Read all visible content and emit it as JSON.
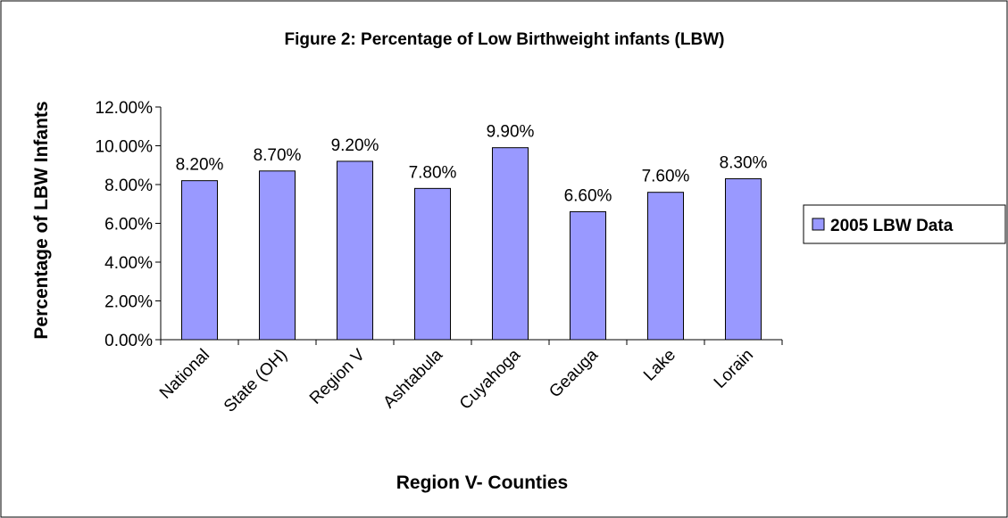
{
  "chart_data": {
    "type": "bar",
    "title": "Figure 2: Percentage of Low Birthweight infants (LBW)",
    "x_label": "Region V- Counties",
    "y_label": "Percentage of LBW Infants",
    "categories": [
      "National",
      "State (OH)",
      "Region V",
      "Ashtabula",
      "Cuyahoga",
      "Geauga",
      "Lake",
      "Lorain"
    ],
    "series": [
      {
        "name": "2005 LBW Data",
        "color": "#9999ff",
        "values": [
          8.2,
          8.7,
          9.2,
          7.8,
          9.9,
          6.6,
          7.6,
          8.3
        ],
        "value_labels": [
          "8.20%",
          "8.70%",
          "9.20%",
          "7.80%",
          "9.90%",
          "6.60%",
          "7.60%",
          "8.30%"
        ]
      }
    ],
    "ylim": [
      0,
      12
    ],
    "yticks": [
      {
        "value": 0,
        "label": "0.00%"
      },
      {
        "value": 2,
        "label": "2.00%"
      },
      {
        "value": 4,
        "label": "4.00%"
      },
      {
        "value": 6,
        "label": "6.00%"
      },
      {
        "value": 8,
        "label": "8.00%"
      },
      {
        "value": 10,
        "label": "10.00%"
      },
      {
        "value": 12,
        "label": "12.00%"
      }
    ],
    "legend": "right"
  }
}
